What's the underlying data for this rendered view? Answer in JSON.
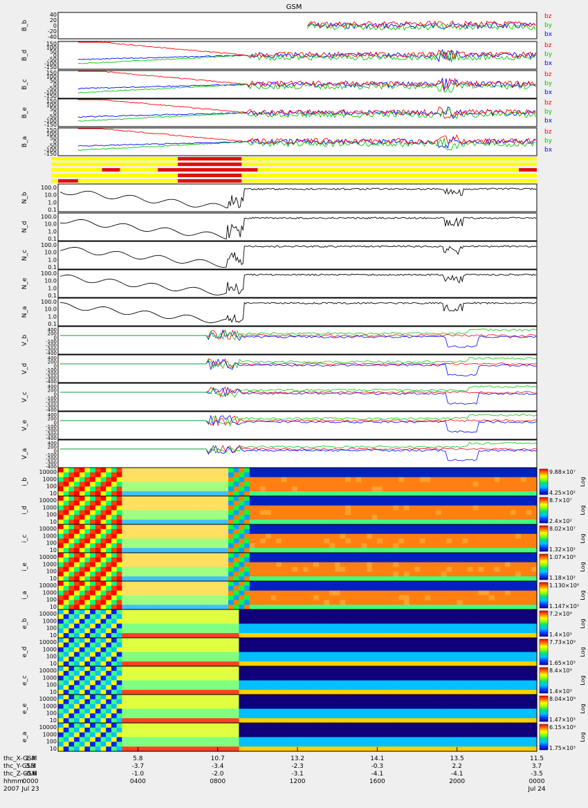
{
  "title": "GSM",
  "colors": {
    "bz": "#ff0000",
    "by": "#00c800",
    "bx": "#0000ff",
    "panel_bg": "#ffffff",
    "page_bg": "#efefef"
  },
  "chart_data": {
    "type": "line",
    "title": "GSM",
    "date": "2007 Jul 23 – Jul 24",
    "x_ticks_hhmm": [
      "0000",
      "0400",
      "0800",
      "1200",
      "1600",
      "2000",
      "0000"
    ],
    "x_tick_dates": [
      "Jul 23",
      "",
      "",
      "",
      "",
      "",
      "Jul 24"
    ],
    "x_range_hours": [
      0,
      24
    ],
    "orbit_labels": [
      "thc_X-GSM",
      "thc_Y-GSM",
      "thc_Z-GSM",
      "hhmm",
      "2007"
    ],
    "orbit_rows": [
      [
        "1.4",
        "5.8",
        "10.7",
        "13.2",
        "14.1",
        "13.5",
        "11.5"
      ],
      [
        "3.3",
        "-3.7",
        "-3.4",
        "-2.3",
        "-0.3",
        "2.2",
        "3.7"
      ],
      [
        "-0.6",
        "-1.0",
        "-2.0",
        "-3.1",
        "-4.1",
        "-4.1",
        "-3.5"
      ]
    ],
    "b_panels": [
      {
        "label": "B_b",
        "ticks": [
          "40",
          "20",
          "0",
          "-20",
          "-40"
        ],
        "ylim": [
          -40,
          40
        ]
      },
      {
        "label": "B_d",
        "ticks": [
          "150",
          "100",
          "50",
          "0",
          "-50",
          "-100",
          "-150"
        ],
        "ylim": [
          -150,
          150
        ]
      },
      {
        "label": "B_c",
        "ticks": [
          "150",
          "100",
          "50",
          "0",
          "-50",
          "-100",
          "-150"
        ],
        "ylim": [
          -150,
          150
        ]
      },
      {
        "label": "B_e",
        "ticks": [
          "150",
          "100",
          "50",
          "0",
          "-50",
          "-100",
          "-150"
        ],
        "ylim": [
          -150,
          150
        ]
      },
      {
        "label": "B_a",
        "ticks": [
          "150",
          "100",
          "50",
          "0",
          "-50",
          "-100",
          "-150"
        ],
        "ylim": [
          -150,
          150
        ]
      }
    ],
    "b_legend": [
      "bz",
      "by",
      "bx"
    ],
    "n_panels": [
      {
        "label": "N_b",
        "ticks": [
          "100.0",
          "10.0",
          "1.0",
          "0.1"
        ],
        "scale": "log"
      },
      {
        "label": "N_d",
        "ticks": [
          "100.0",
          "10.0",
          "1.0",
          "0.1"
        ],
        "scale": "log"
      },
      {
        "label": "N_c",
        "ticks": [
          "100.0",
          "10.0",
          "1.0",
          "0.1"
        ],
        "scale": "log"
      },
      {
        "label": "N_e",
        "ticks": [
          "100.0",
          "10.0",
          "1.0",
          "0.1"
        ],
        "scale": "log"
      },
      {
        "label": "N_a",
        "ticks": [
          "100.0",
          "10.0",
          "1.0",
          "0.1"
        ],
        "scale": "log"
      }
    ],
    "v_panels": [
      {
        "label": "V_b",
        "ticks": [
          "400",
          "200",
          "0",
          "-100",
          "-200",
          "-300",
          "-400"
        ]
      },
      {
        "label": "V_d",
        "ticks": [
          "400",
          "200",
          "0",
          "-100",
          "-200",
          "-300",
          "-400"
        ]
      },
      {
        "label": "V_c",
        "ticks": [
          "400",
          "200",
          "0",
          "-100",
          "-200",
          "-300",
          "-400"
        ]
      },
      {
        "label": "V_e",
        "ticks": [
          "400",
          "200",
          "0",
          "-100",
          "-200",
          "-300",
          "-400"
        ]
      },
      {
        "label": "V_a",
        "ticks": [
          "400",
          "200",
          "0",
          "-100",
          "-200",
          "-300",
          "-400"
        ]
      }
    ],
    "spec_panels": [
      {
        "label": "i_b",
        "kind": "ion",
        "ticks": [
          "10000",
          "1000",
          "100",
          "10"
        ],
        "cmax": "9.88×10⁷",
        "cmin": "4.25×10²"
      },
      {
        "label": "i_d",
        "kind": "ion",
        "ticks": [
          "10000",
          "1000",
          "100",
          "10"
        ],
        "cmax": "8.7×10⁷",
        "cmin": "2.4×10²"
      },
      {
        "label": "i_c",
        "kind": "ion",
        "ticks": [
          "10000",
          "1000",
          "100",
          "10"
        ],
        "cmax": "8.02×10⁷",
        "cmin": "1.32×10²"
      },
      {
        "label": "i_e",
        "kind": "ion",
        "ticks": [
          "10000",
          "1000",
          "100",
          "10"
        ],
        "cmax": "1.07×10⁸",
        "cmin": "1.18×10²"
      },
      {
        "label": "i_a",
        "kind": "ion",
        "ticks": [
          "10000",
          "1000",
          "100",
          "10"
        ],
        "cmax": "1.130×10⁸",
        "cmin": "1.147×10³"
      },
      {
        "label": "e_b",
        "kind": "electron",
        "ticks": [
          "10000",
          "1000",
          "100",
          "10"
        ],
        "cmax": "7.2×10⁹",
        "cmin": "1.4×10³"
      },
      {
        "label": "e_d",
        "kind": "electron",
        "ticks": [
          "10000",
          "1000",
          "100",
          "10"
        ],
        "cmax": "7.73×10⁹",
        "cmin": "1.65×10³"
      },
      {
        "label": "e_c",
        "kind": "electron",
        "ticks": [
          "10000",
          "1000",
          "100",
          "10"
        ],
        "cmax": "8.4×10⁹",
        "cmin": "1.4×10³"
      },
      {
        "label": "e_e",
        "kind": "electron",
        "ticks": [
          "10000",
          "1000",
          "100",
          "10"
        ],
        "cmax": "8.04×10⁹",
        "cmin": "1.47×10³"
      },
      {
        "label": "e_a",
        "kind": "electron",
        "ticks": [
          "10000",
          "1000",
          "100",
          "10"
        ],
        "cmax": "6.15×10⁹",
        "cmin": "1.75×10³"
      }
    ],
    "colorbar_scale_label": "Log",
    "mode_bar_rows": 5
  }
}
